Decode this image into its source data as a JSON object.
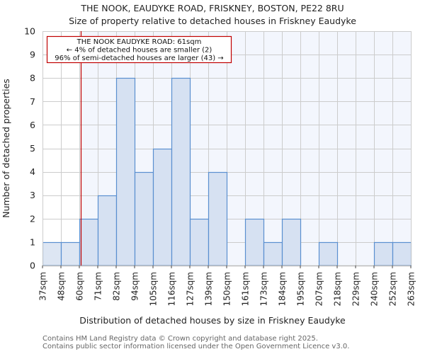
{
  "chart_data": {
    "type": "bar",
    "title": "THE NOOK, EAUDYKE ROAD, FRISKNEY, BOSTON, PE22 8RU",
    "subtitle": "Size of property relative to detached houses in Friskney Eaudyke",
    "xlabel": "Distribution of detached houses by size in Friskney Eaudyke",
    "ylabel": "Number of detached properties",
    "ylim": [
      0,
      10
    ],
    "yticks": [
      0,
      1,
      2,
      3,
      4,
      5,
      6,
      7,
      8,
      9,
      10
    ],
    "bin_edges": [
      "37sqm",
      "48sqm",
      "60sqm",
      "71sqm",
      "82sqm",
      "94sqm",
      "105sqm",
      "116sqm",
      "127sqm",
      "139sqm",
      "150sqm",
      "161sqm",
      "173sqm",
      "184sqm",
      "195sqm",
      "207sqm",
      "218sqm",
      "229sqm",
      "240sqm",
      "252sqm",
      "263sqm"
    ],
    "categories": [
      "37-48sqm",
      "48-60sqm",
      "60-71sqm",
      "71-82sqm",
      "82-94sqm",
      "94-105sqm",
      "105-116sqm",
      "116-127sqm",
      "127-139sqm",
      "139-150sqm",
      "150-161sqm",
      "161-173sqm",
      "173-184sqm",
      "184-195sqm",
      "195-207sqm",
      "207-218sqm",
      "218-229sqm",
      "229-240sqm",
      "240-252sqm",
      "252-263sqm"
    ],
    "values": [
      1,
      1,
      2,
      3,
      8,
      4,
      5,
      8,
      2,
      4,
      0,
      2,
      1,
      2,
      0,
      1,
      0,
      0,
      1,
      1
    ],
    "grid": true,
    "marker": {
      "value_sqm": 61,
      "label": "THE NOOK EAUDYKE ROAD: 61sqm",
      "line2": "← 4% of detached houses are smaller (2)",
      "line3": "96% of semi-detached houses are larger (43) →",
      "color": "#c00000"
    },
    "colors": {
      "bar_fill": "#d6e1f2",
      "bar_fill_below": "#dde6f3",
      "bar_edge": "#5a8fd0",
      "bg_above": "#f3f6fd",
      "grid": "#cccccc"
    }
  },
  "footer": {
    "line1": "Contains HM Land Registry data © Crown copyright and database right 2025.",
    "line2": "Contains public sector information licensed under the Open Government Licence v3.0."
  }
}
